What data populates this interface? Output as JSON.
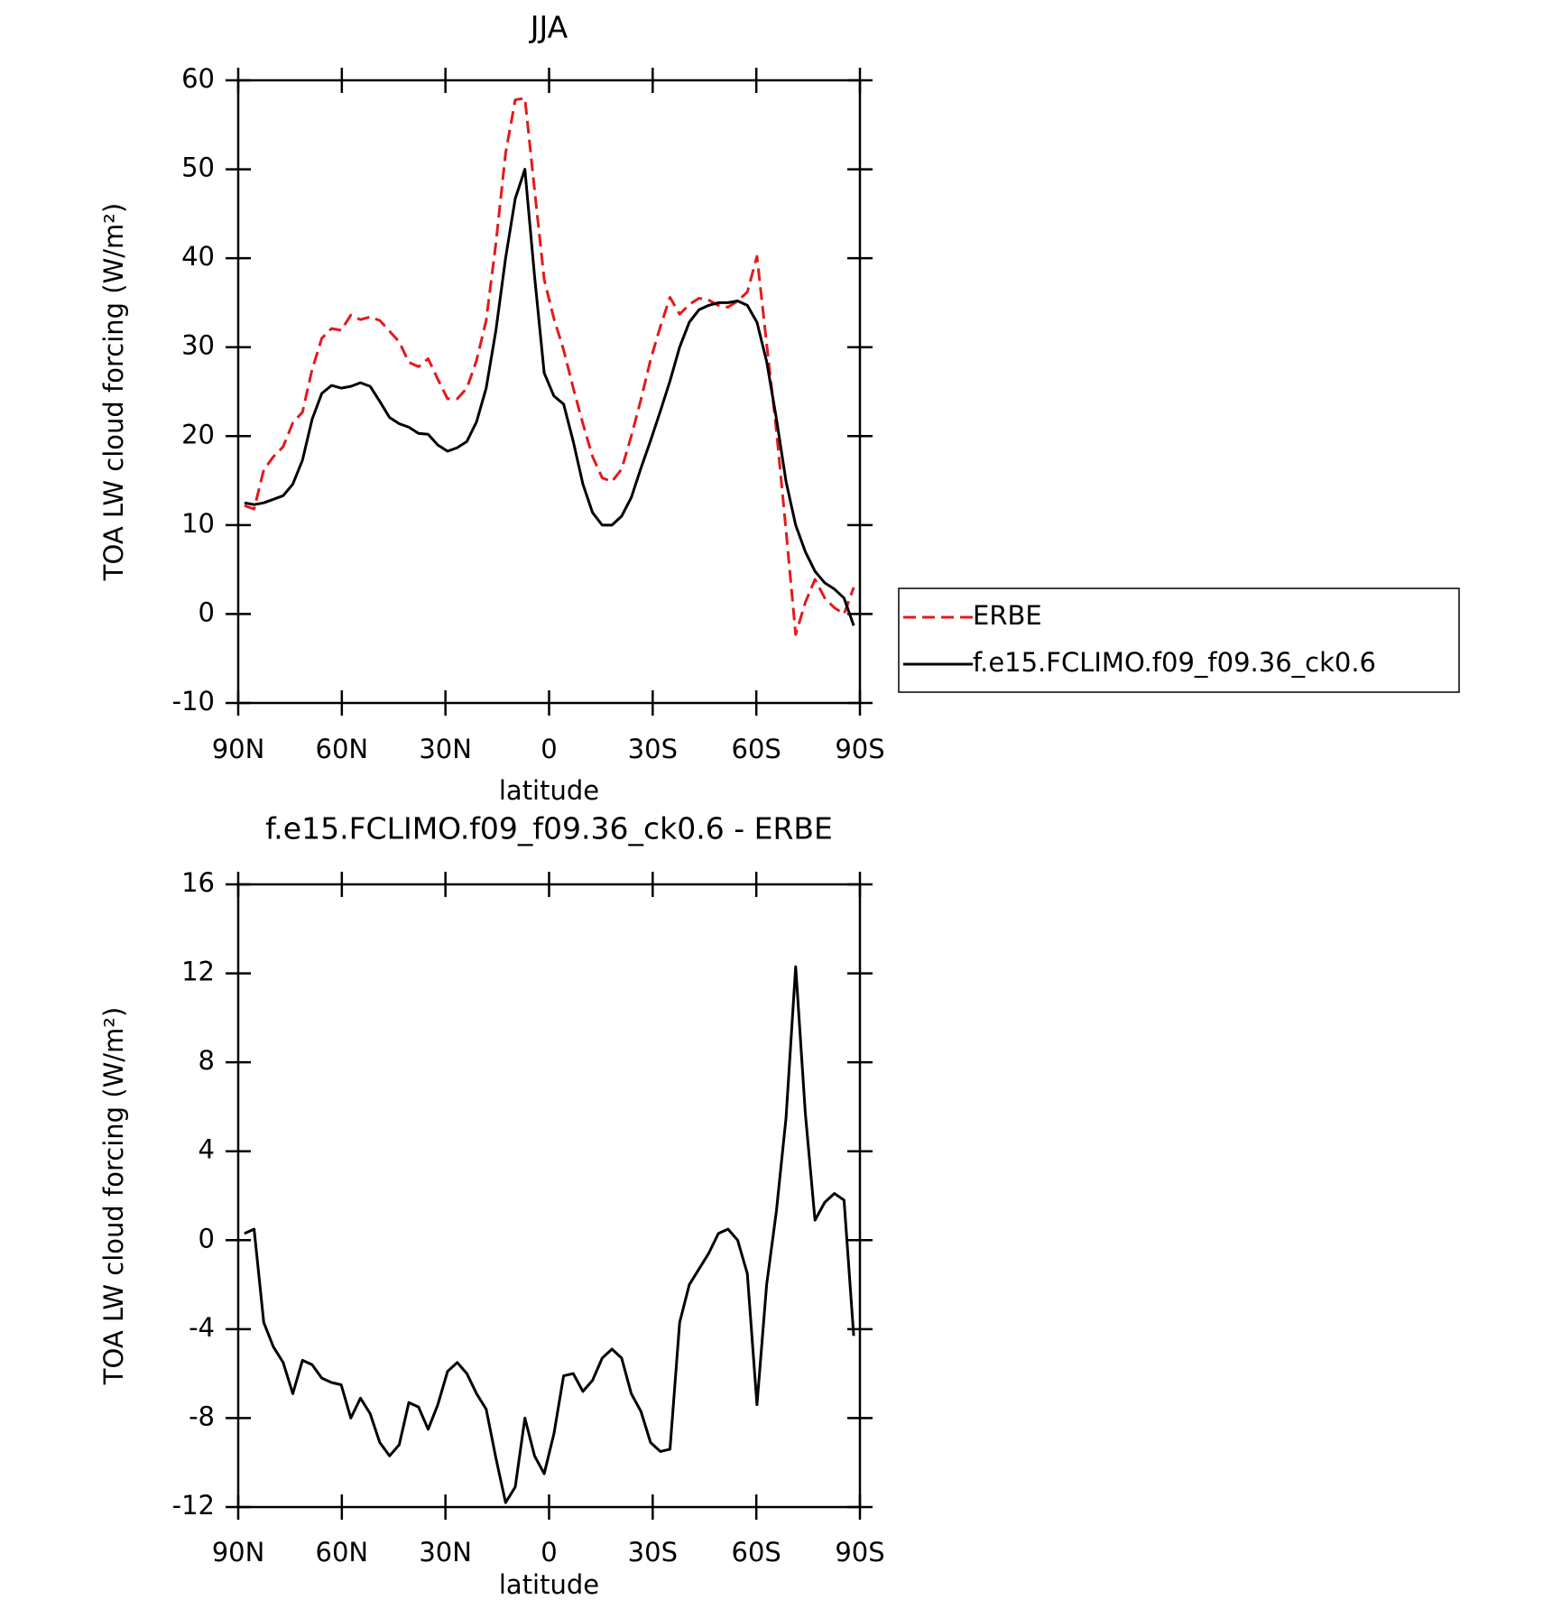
{
  "chart_data": [
    {
      "type": "line",
      "title": "JJA",
      "x_label": "latitude",
      "y_label": "TOA LW cloud forcing (W/m²)",
      "x": [
        88.2,
        85.4,
        82.6,
        79.8,
        77.0,
        74.2,
        71.4,
        68.6,
        65.8,
        63.0,
        60.2,
        57.4,
        54.6,
        51.8,
        49.0,
        46.2,
        43.4,
        40.6,
        37.8,
        35.0,
        32.2,
        29.4,
        26.6,
        23.8,
        21.0,
        18.2,
        15.4,
        12.6,
        9.8,
        7.0,
        4.2,
        1.4,
        -1.4,
        -4.2,
        -7.0,
        -9.8,
        -12.6,
        -15.4,
        -18.2,
        -21.0,
        -23.8,
        -26.6,
        -29.4,
        -32.2,
        -35.0,
        -37.8,
        -40.6,
        -43.4,
        -46.2,
        -49.0,
        -51.8,
        -54.6,
        -57.4,
        -60.2,
        -63.0,
        -65.8,
        -68.6,
        -71.4,
        -74.2,
        -77.0,
        -79.8,
        -82.6,
        -85.4,
        -88.2
      ],
      "series": [
        {
          "name": "ERBE",
          "color": "#e31a1c",
          "line_style": "dashed",
          "values": [
            12.2,
            11.8,
            16.2,
            17.7,
            18.8,
            21.5,
            22.7,
            27.5,
            31.0,
            32.1,
            31.9,
            33.6,
            33.1,
            33.4,
            33.0,
            31.8,
            30.6,
            28.3,
            27.8,
            28.7,
            26.4,
            24.2,
            24.2,
            25.4,
            28.5,
            33.0,
            41.7,
            51.8,
            57.8,
            58.0,
            47.7,
            37.6,
            33.2,
            29.7,
            25.4,
            21.4,
            17.7,
            15.3,
            14.9,
            16.3,
            20.0,
            24.1,
            28.6,
            32.3,
            35.6,
            33.7,
            34.8,
            35.5,
            35.3,
            34.7,
            34.5,
            35.2,
            36.2,
            40.2,
            30.4,
            20.7,
            9.4,
            -2.3,
            1.3,
            3.9,
            1.8,
            0.7,
            0.0,
            3.0
          ]
        },
        {
          "name": "f.e15.FCLIMO.f09_f09.36_ck0.6",
          "color": "#000000",
          "line_style": "solid",
          "values": [
            12.5,
            12.3,
            12.5,
            12.9,
            13.3,
            14.6,
            17.3,
            21.9,
            24.8,
            25.7,
            25.4,
            25.6,
            26.0,
            25.6,
            23.9,
            22.1,
            21.4,
            21.0,
            20.3,
            20.2,
            19.0,
            18.3,
            18.7,
            19.4,
            21.6,
            25.4,
            31.9,
            40.0,
            46.7,
            50.0,
            38.0,
            27.1,
            24.5,
            23.6,
            19.4,
            14.6,
            11.4,
            10.0,
            10.0,
            11.0,
            13.1,
            16.4,
            19.5,
            22.8,
            26.2,
            30.0,
            32.8,
            34.2,
            34.7,
            35.0,
            35.0,
            35.2,
            34.7,
            32.8,
            28.4,
            22.0,
            14.9,
            10.0,
            7.0,
            4.8,
            3.5,
            2.8,
            1.8,
            -1.3
          ]
        }
      ],
      "xlim": [
        90,
        -90
      ],
      "xticks": [
        {
          "value": 90,
          "label": "90N"
        },
        {
          "value": 60,
          "label": "60N"
        },
        {
          "value": 30,
          "label": "30N"
        },
        0,
        {
          "value": -30,
          "label": "30S"
        },
        {
          "value": -60,
          "label": "60S"
        },
        {
          "value": -90,
          "label": "90S"
        }
      ],
      "ylim": [
        -10,
        60
      ],
      "yticks": [
        -10,
        0,
        10,
        20,
        30,
        40,
        50,
        60
      ],
      "legend": "right"
    },
    {
      "type": "line",
      "title": "f.e15.FCLIMO.f09_f09.36_ck0.6 - ERBE",
      "x_label": "latitude",
      "y_label": "TOA LW cloud forcing (W/m²)",
      "x": [
        88.2,
        85.4,
        82.6,
        79.8,
        77.0,
        74.2,
        71.4,
        68.6,
        65.8,
        63.0,
        60.2,
        57.4,
        54.6,
        51.8,
        49.0,
        46.2,
        43.4,
        40.6,
        37.8,
        35.0,
        32.2,
        29.4,
        26.6,
        23.8,
        21.0,
        18.2,
        15.4,
        12.6,
        9.8,
        7.0,
        4.2,
        1.4,
        -1.4,
        -4.2,
        -7.0,
        -9.8,
        -12.6,
        -15.4,
        -18.2,
        -21.0,
        -23.8,
        -26.6,
        -29.4,
        -32.2,
        -35.0,
        -37.8,
        -40.6,
        -43.4,
        -46.2,
        -49.0,
        -51.8,
        -54.6,
        -57.4,
        -60.2,
        -63.0,
        -65.8,
        -68.6,
        -71.4,
        -74.2,
        -77.0,
        -79.8,
        -82.6,
        -85.4,
        -88.2
      ],
      "values": [
        0.3,
        0.5,
        -3.7,
        -4.8,
        -5.5,
        -6.9,
        -5.4,
        -5.6,
        -6.2,
        -6.4,
        -6.5,
        -8.0,
        -7.1,
        -7.8,
        -9.1,
        -9.7,
        -9.2,
        -7.3,
        -7.5,
        -8.5,
        -7.4,
        -5.9,
        -5.5,
        -6.0,
        -6.9,
        -7.6,
        -9.8,
        -11.8,
        -11.1,
        -8.0,
        -9.7,
        -10.5,
        -8.7,
        -6.1,
        -6.0,
        -6.8,
        -6.3,
        -5.3,
        -4.9,
        -5.3,
        -6.9,
        -7.7,
        -9.1,
        -9.5,
        -9.4,
        -3.7,
        -2.0,
        -1.3,
        -0.6,
        0.3,
        0.5,
        0.0,
        -1.5,
        -7.4,
        -2.0,
        1.3,
        5.5,
        12.3,
        5.7,
        0.9,
        1.7,
        2.1,
        1.8,
        -4.3
      ],
      "color": "#000000",
      "xlim": [
        90,
        -90
      ],
      "xticks": [
        {
          "value": 90,
          "label": "90N"
        },
        {
          "value": 60,
          "label": "60N"
        },
        {
          "value": 30,
          "label": "30N"
        },
        0,
        {
          "value": -30,
          "label": "30S"
        },
        {
          "value": -60,
          "label": "60S"
        },
        {
          "value": -90,
          "label": "90S"
        }
      ],
      "ylim": [
        -12,
        16
      ],
      "yticks": [
        -12,
        -8,
        -4,
        0,
        4,
        8,
        12,
        16
      ]
    }
  ]
}
